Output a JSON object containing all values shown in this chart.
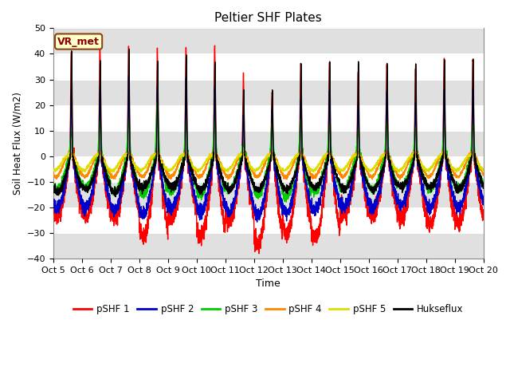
{
  "title": "Peltier SHF Plates",
  "xlabel": "Time",
  "ylabel": "Soil Heat Flux (W/m2)",
  "ylim": [
    -40,
    50
  ],
  "xlim": [
    0,
    15
  ],
  "xtick_labels": [
    "Oct 5",
    "Oct 6",
    "Oct 7",
    "Oct 8",
    "Oct 9",
    "Oct 10",
    "Oct 11",
    "Oct 12",
    "Oct 13",
    "Oct 14",
    "Oct 15",
    "Oct 16",
    "Oct 17",
    "Oct 18",
    "Oct 19",
    "Oct 20"
  ],
  "ytick_values": [
    -40,
    -30,
    -20,
    -10,
    0,
    10,
    20,
    30,
    40,
    50
  ],
  "vr_met_label": "VR_met",
  "legend_entries": [
    "pSHF 1",
    "pSHF 2",
    "pSHF 3",
    "pSHF 4",
    "pSHF 5",
    "Hukseflux"
  ],
  "colors": {
    "pSHF1": "#ff0000",
    "pSHF2": "#0000cc",
    "pSHF3": "#00cc00",
    "pSHF4": "#ff8800",
    "pSHF5": "#dddd00",
    "Hukseflux": "#000000"
  },
  "plot_bg_color": "#ffffff",
  "band_color": "#e0e0e0",
  "n_days": 15,
  "n_pts_per_day": 288
}
